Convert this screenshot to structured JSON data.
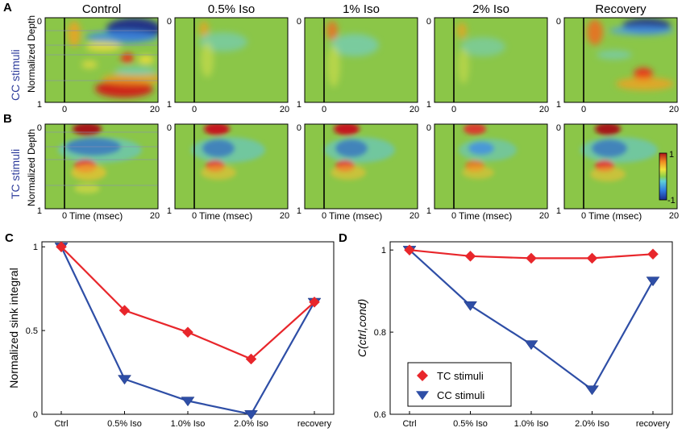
{
  "panel_letters": {
    "a": "A",
    "b": "B",
    "c": "C",
    "d": "D"
  },
  "colors": {
    "tc": "#e8262b",
    "cc": "#2e4ea6",
    "row_label": "#2c3b9b",
    "background": "#78c04a"
  },
  "heatmaps": {
    "columns": [
      "Control",
      "0.5% Iso",
      "1% Iso",
      "2% Iso",
      "Recovery"
    ],
    "row_a_label": "CC stimuli",
    "row_b_label": "TC stimuli",
    "depth_label": "Normalized Depth",
    "depth_tick_top": "0",
    "depth_tick_bottom": "1",
    "time_tick_start": "0",
    "time_tick_end": "20",
    "time_label": "Time (msec)",
    "colorbar_max": "1",
    "colorbar_min": "-1"
  },
  "chart_data": [
    {
      "type": "line",
      "panel": "C",
      "categories": [
        "Ctrl",
        "0.5% Iso",
        "1.0% Iso",
        "2.0% Iso",
        "recovery"
      ],
      "series": [
        {
          "name": "TC stimuli",
          "marker": "diamond",
          "color": "#e8262b",
          "values": [
            1.0,
            0.62,
            0.49,
            0.33,
            0.67
          ]
        },
        {
          "name": "CC stimuli",
          "marker": "triangle-down",
          "color": "#2e4ea6",
          "values": [
            1.0,
            0.21,
            0.08,
            0.0,
            0.67
          ]
        }
      ],
      "ylabel": "Normalized sink integral",
      "ylim": [
        0,
        1.03
      ],
      "yticks": [
        0,
        0.5,
        1
      ],
      "ytick_labels": [
        "0",
        "0.5",
        "1"
      ],
      "grid": false
    },
    {
      "type": "line",
      "panel": "D",
      "categories": [
        "Ctrl",
        "0.5% Iso",
        "1.0% Iso",
        "2.0% Iso",
        "recovery"
      ],
      "series": [
        {
          "name": "TC stimuli",
          "marker": "diamond",
          "color": "#e8262b",
          "values": [
            1.0,
            0.985,
            0.98,
            0.98,
            0.99
          ]
        },
        {
          "name": "CC stimuli",
          "marker": "triangle-down",
          "color": "#2e4ea6",
          "values": [
            1.0,
            0.865,
            0.77,
            0.66,
            0.925
          ]
        }
      ],
      "ylabel": "C(ctrl,cond)",
      "ylim": [
        0.6,
        1.02
      ],
      "yticks": [
        0.6,
        0.8,
        1
      ],
      "ytick_labels": [
        "0.6",
        "0.8",
        "1"
      ],
      "legend": {
        "position": "bottom-left",
        "entries": [
          "TC stimuli",
          "CC stimuli"
        ]
      },
      "grid": false
    }
  ]
}
